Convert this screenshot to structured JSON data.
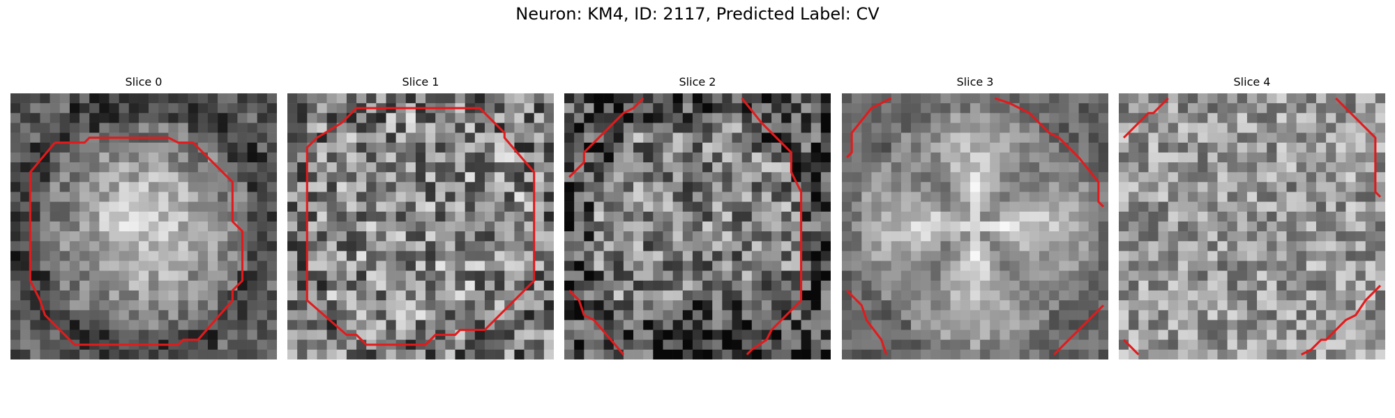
{
  "figure": {
    "title": "Neuron: KM4, ID: 2117, Predicted Label: CV"
  },
  "panels": [
    {
      "title": "Slice 0",
      "seed": 11,
      "style": "blob",
      "contour": "octagon-0"
    },
    {
      "title": "Slice 1",
      "seed": 23,
      "style": "noisy",
      "contour": "octagon-1"
    },
    {
      "title": "Slice 2",
      "seed": 37,
      "style": "dark-ring",
      "contour": "arcs-2"
    },
    {
      "title": "Slice 3",
      "seed": 51,
      "style": "lobes",
      "contour": "arcs-3"
    },
    {
      "title": "Slice 4",
      "seed": 67,
      "style": "flat",
      "contour": "arcs-4"
    }
  ],
  "colors": {
    "contour": "#e31a1c",
    "background": "#ffffff"
  }
}
